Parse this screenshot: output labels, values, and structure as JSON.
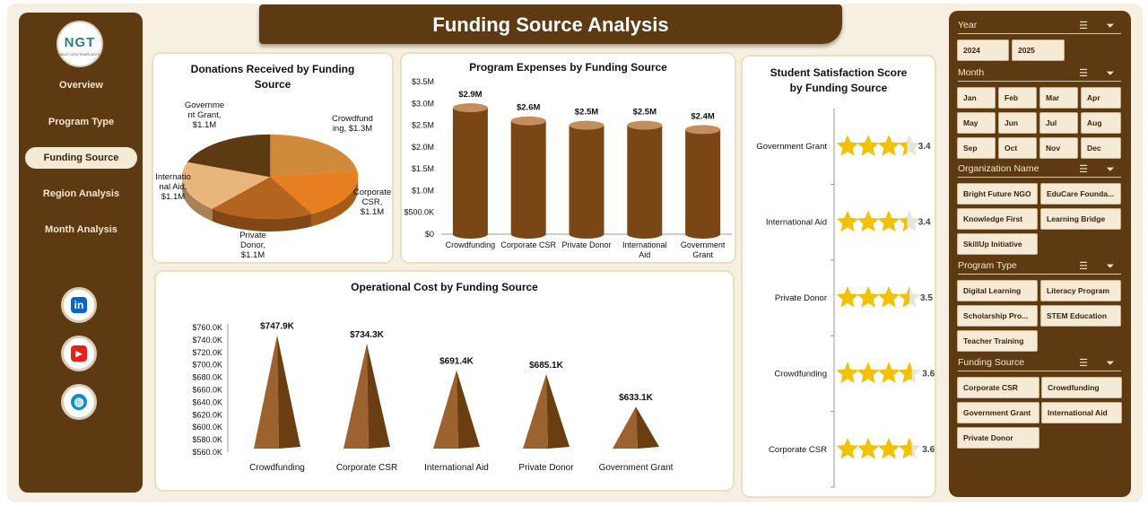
{
  "title": "Funding Source Analysis",
  "logo": {
    "text": "NGT",
    "subtitle": "NEXT GEN TEMPLATES"
  },
  "nav": [
    {
      "label": "Overview",
      "active": false
    },
    {
      "label": "Program Type",
      "active": false
    },
    {
      "label": "Funding Source",
      "active": true
    },
    {
      "label": "Region Analysis",
      "active": false
    },
    {
      "label": "Month Analysis",
      "active": false
    }
  ],
  "social": [
    {
      "icon": "linkedin-icon",
      "glyph": "in",
      "color": "#0a66c2"
    },
    {
      "icon": "youtube-icon",
      "glyph": "▶",
      "color": "#e62117"
    },
    {
      "icon": "globe-icon",
      "glyph": "◍",
      "color": "#0a8fc9"
    }
  ],
  "colors": {
    "brand": "#5e3a12",
    "panel_bg": "#f7f0e2",
    "button_bg": "#f5ead6",
    "bar": "#7a4616",
    "star": "#f2c200"
  },
  "slicers": {
    "year": {
      "label": "Year",
      "options": [
        "2024",
        "2025"
      ]
    },
    "month": {
      "label": "Month",
      "options": [
        "Jan",
        "Feb",
        "Mar",
        "Apr",
        "May",
        "Jun",
        "Jul",
        "Aug",
        "Sep",
        "Oct",
        "Nov",
        "Dec"
      ]
    },
    "organization": {
      "label": "Organization Name",
      "options": [
        "Bright Future NGO",
        "EduCare Founda...",
        "Knowledge First",
        "Learning Bridge",
        "SkillUp Initiative"
      ]
    },
    "program": {
      "label": "Program Type",
      "options": [
        "Digital Learning",
        "Literacy Program",
        "Scholarship Pro...",
        "STEM Education",
        "Teacher Training"
      ]
    },
    "funding": {
      "label": "Funding Source",
      "options": [
        "Corporate CSR",
        "Crowdfunding",
        "Government Grant",
        "International Aid",
        "Private Donor"
      ]
    }
  },
  "chart_data": [
    {
      "type": "pie",
      "title": "Donations Received by Funding Source",
      "title_lines": [
        "Donations Received by Funding",
        "Source"
      ],
      "categories": [
        "Crowdfunding",
        "Corporate CSR",
        "Private Donor",
        "International Aid",
        "Government Grant"
      ],
      "values": [
        1.3,
        1.1,
        1.1,
        1.1,
        1.1
      ],
      "unit": "$M",
      "data_labels": [
        [
          "Crowdfund",
          "ing, $1.3M"
        ],
        [
          "Corporate",
          "CSR,",
          "$1.1M"
        ],
        [
          "Private",
          "Donor,",
          "$1.1M"
        ],
        [
          "Internatio",
          "nal Aid,",
          "$1.1M"
        ],
        [
          "Governme",
          "nt Grant,",
          "$1.1M"
        ]
      ],
      "colors": [
        "#d08a3c",
        "#e67e22",
        "#b3641e",
        "#e8b57a",
        "#5e3a12"
      ]
    },
    {
      "type": "bar",
      "title": "Program Expenses by Funding Source",
      "categories": [
        "Crowdfunding",
        "Corporate CSR",
        "Private Donor",
        "International Aid",
        "Government Grant"
      ],
      "category_labels": [
        [
          "Crowdfunding"
        ],
        [
          "Corporate CSR"
        ],
        [
          "Private Donor"
        ],
        [
          "International",
          "Aid"
        ],
        [
          "Government",
          "Grant"
        ]
      ],
      "values": [
        2.9,
        2.6,
        2.5,
        2.5,
        2.4
      ],
      "data_labels": [
        "$2.9M",
        "$2.6M",
        "$2.5M",
        "$2.5M",
        "$2.4M"
      ],
      "ylim": [
        0,
        3.5
      ],
      "y_ticks": [
        0,
        0.5,
        1,
        1.5,
        2,
        2.5,
        3,
        3.5
      ],
      "y_tick_labels": [
        "$0",
        "$500.0K",
        "$1.0M",
        "$1.5M",
        "$2.0M",
        "$2.5M",
        "$3.0M",
        "$3.5M"
      ],
      "grid": false
    },
    {
      "type": "bar",
      "title": "Operational Cost by Funding Source",
      "categories": [
        "Crowdfunding",
        "Corporate CSR",
        "International Aid",
        "Private Donor",
        "Government Grant"
      ],
      "values": [
        747.9,
        734.3,
        691.4,
        685.1,
        633.1
      ],
      "data_labels": [
        "$747.9K",
        "$734.3K",
        "$691.4K",
        "$685.1K",
        "$633.1K"
      ],
      "ylim": [
        560,
        760
      ],
      "y_ticks": [
        560,
        580,
        600,
        620,
        640,
        660,
        680,
        700,
        720,
        740,
        760
      ],
      "y_tick_labels": [
        "$560.0K",
        "$580.0K",
        "$600.0K",
        "$620.0K",
        "$640.0K",
        "$660.0K",
        "$680.0K",
        "$700.0K",
        "$720.0K",
        "$740.0K",
        "$760.0K"
      ],
      "grid": false
    },
    {
      "type": "bar",
      "title": "Student Satisfaction Score by Funding Source",
      "title_lines": [
        "Student Satisfaction Score",
        "by Funding Source"
      ],
      "categories": [
        "Government Grant",
        "International Aid",
        "Private Donor",
        "Crowdfunding",
        "Corporate CSR"
      ],
      "values": [
        3.4,
        3.4,
        3.5,
        3.6,
        3.6
      ],
      "data_labels": [
        "3.4",
        "3.4",
        "3.5",
        "3.6",
        "3.6"
      ],
      "max_stars": 4
    }
  ]
}
